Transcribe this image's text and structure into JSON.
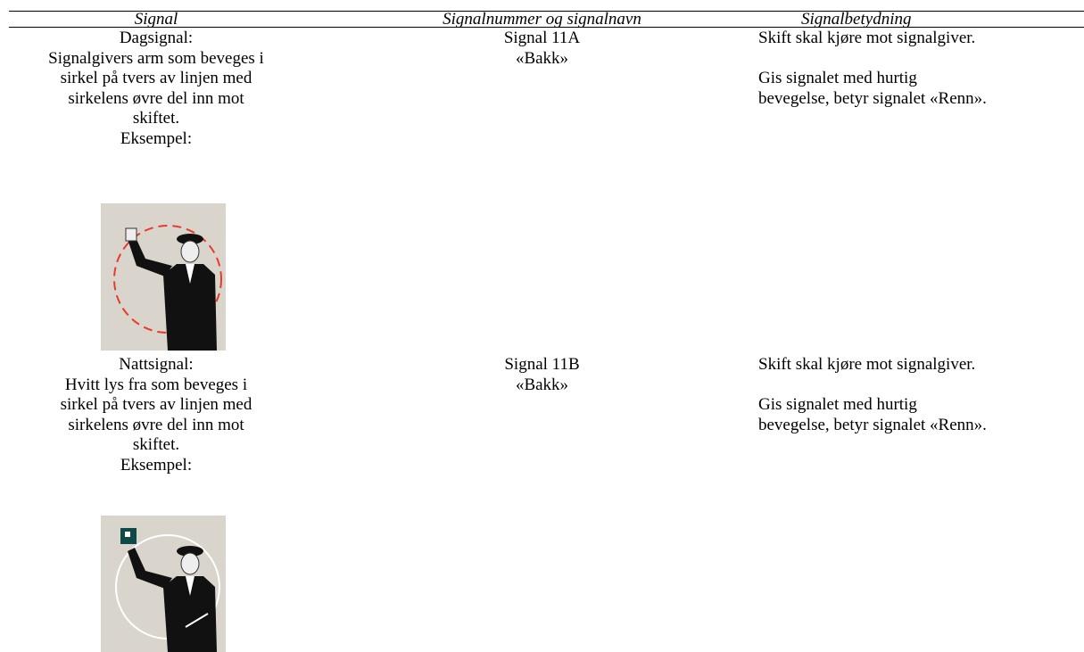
{
  "header": {
    "columns": [
      "Signal",
      "Signalnummer og signalnavn",
      "Signalbetydning"
    ]
  },
  "rows": [
    {
      "signal": {
        "lines": [
          "Dagsignal:",
          "Signalgivers arm som beveges i",
          "sirkel på tvers av linjen med",
          "sirkelens øvre del inn mot",
          "skiftet.",
          "Eksempel:"
        ]
      },
      "number": [
        "Signal 11A",
        "«Bakk»"
      ],
      "meaning": {
        "first": "Skift skal kjøre mot signalgiver.",
        "second": [
          "Gis signalet med hurtig",
          "bevegelse, betyr signalet «Renn»."
        ]
      }
    },
    {
      "signal": {
        "lines": [
          "Nattsignal:",
          "Hvitt lys fra som beveges i",
          "sirkel på tvers av linjen med",
          "sirkelens øvre del inn mot",
          "skiftet.",
          "Eksempel:"
        ]
      },
      "number": [
        "Signal 11B",
        "«Bakk»"
      ],
      "meaning": {
        "first": "Skift skal kjøre mot signalgiver.",
        "second": [
          "Gis signalet med hurtig",
          "bevegelse, betyr signalet «Renn»."
        ]
      }
    }
  ]
}
